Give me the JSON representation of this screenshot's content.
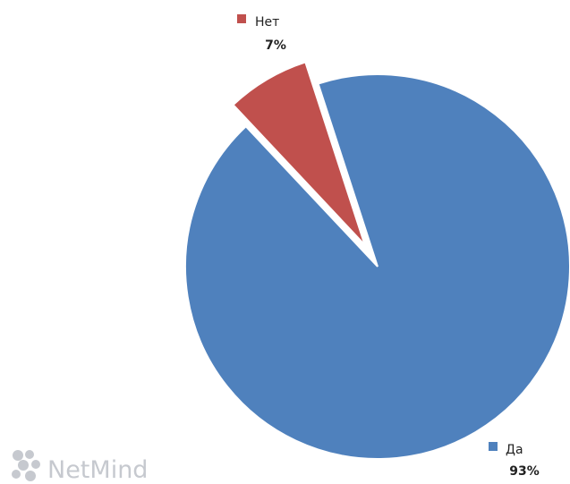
{
  "chart_data": {
    "type": "pie",
    "slices": [
      {
        "name": "Да",
        "value": 93,
        "label": "93%",
        "color": "#4f81bd"
      },
      {
        "name": "Нет",
        "value": 7,
        "label": "7%",
        "color": "#c0504d"
      }
    ],
    "exploded": "Нет",
    "legend": "inline"
  },
  "watermark": {
    "text": "NetMind",
    "icon": "netmind-logo-icon",
    "color": "#c6c9cf"
  }
}
